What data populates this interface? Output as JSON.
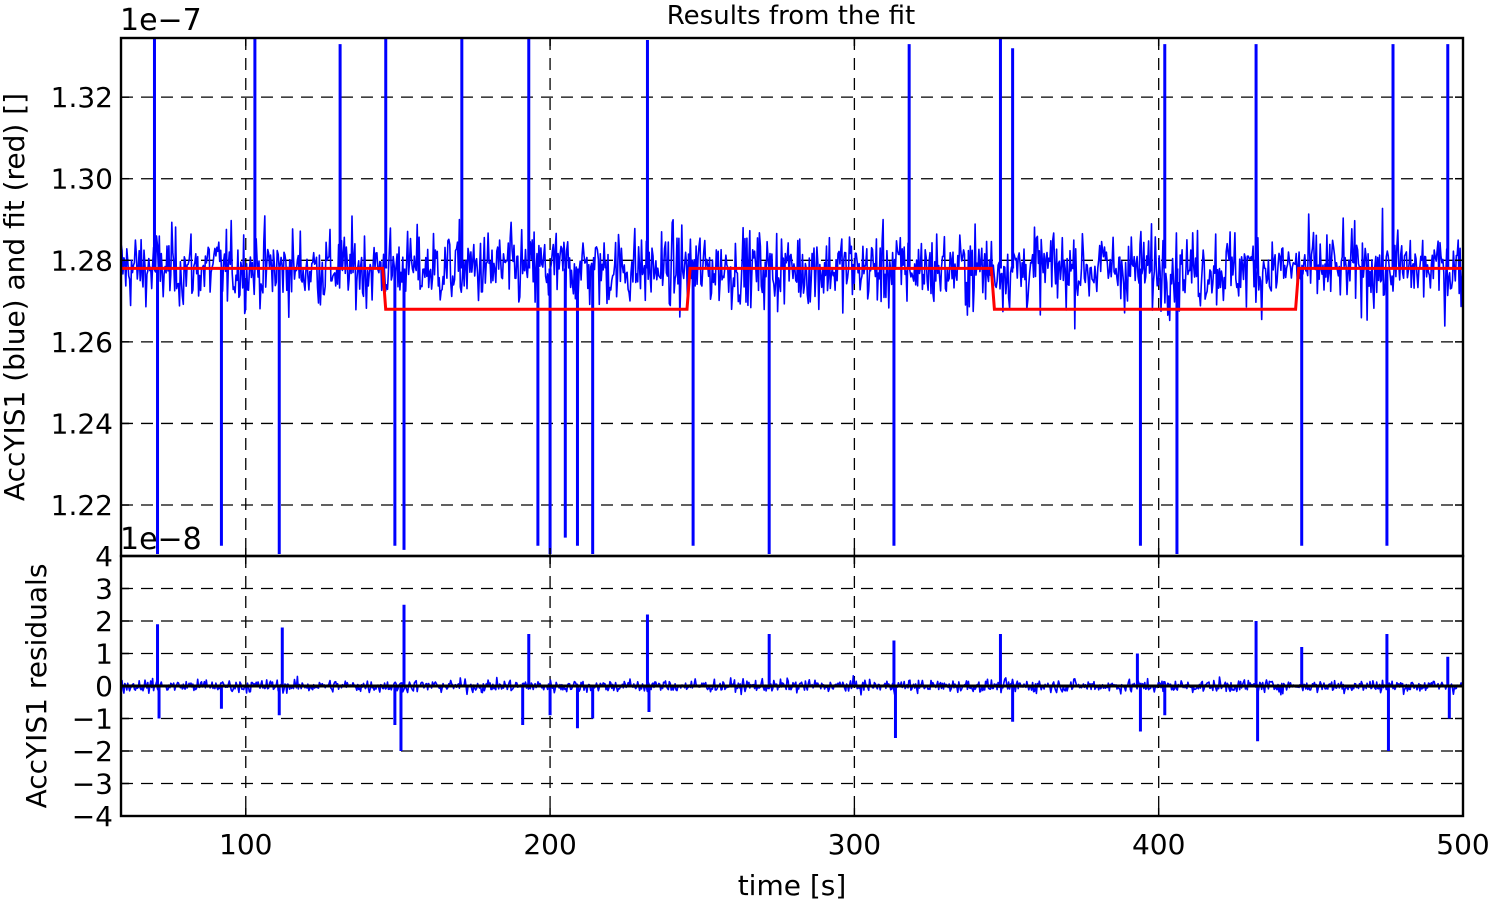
{
  "chart_data": [
    {
      "type": "line",
      "title": "Results from the fit",
      "xlabel": "",
      "ylabel": "AccYIS1 (blue) and fit (red) []",
      "y_offset_label": "1e−7",
      "xlim": [
        59,
        500
      ],
      "ylim": [
        1.2075,
        1.3345
      ],
      "x_ticks": [
        100,
        200,
        300,
        400,
        500
      ],
      "y_ticks": [
        1.22,
        1.24,
        1.26,
        1.28,
        1.3,
        1.32
      ],
      "y_tick_labels": [
        "1.22",
        "1.24",
        "1.26",
        "1.28",
        "1.30",
        "1.32"
      ],
      "grid": true,
      "series": [
        {
          "color": "#0000ff",
          "noise": {
            "center": 1.278,
            "amplitude": 0.012
          },
          "spikes": [
            [
              70,
              1.336
            ],
            [
              71,
              1.208
            ],
            [
              92,
              1.21
            ],
            [
              103,
              1.335
            ],
            [
              111,
              1.208
            ],
            [
              131,
              1.333
            ],
            [
              146,
              1.335
            ],
            [
              149,
              1.21
            ],
            [
              152,
              1.209
            ],
            [
              171,
              1.335
            ],
            [
              193,
              1.335
            ],
            [
              196,
              1.21
            ],
            [
              200,
              1.208
            ],
            [
              205,
              1.212
            ],
            [
              209,
              1.21
            ],
            [
              214,
              1.208
            ],
            [
              232,
              1.334
            ],
            [
              247,
              1.21
            ],
            [
              272,
              1.208
            ],
            [
              313,
              1.21
            ],
            [
              318,
              1.333
            ],
            [
              348,
              1.335
            ],
            [
              352,
              1.332
            ],
            [
              394,
              1.21
            ],
            [
              402,
              1.333
            ],
            [
              406,
              1.208
            ],
            [
              432,
              1.333
            ],
            [
              447,
              1.21
            ],
            [
              475,
              1.21
            ],
            [
              477,
              1.333
            ],
            [
              495,
              1.333
            ]
          ]
        },
        {
          "color": "#ff0000",
          "x": [
            59,
            145,
            146,
            245,
            246,
            345,
            346,
            445,
            446,
            500
          ],
          "y": [
            1.278,
            1.278,
            1.268,
            1.268,
            1.278,
            1.278,
            1.268,
            1.268,
            1.278,
            1.278
          ]
        }
      ]
    },
    {
      "type": "line",
      "title": "",
      "xlabel": "time [s]",
      "ylabel": "AccYIS1 residuals",
      "y_offset_label": "1e−8",
      "xlim": [
        59,
        500
      ],
      "ylim": [
        -4,
        4
      ],
      "x_ticks": [
        100,
        200,
        300,
        400,
        500
      ],
      "x_tick_labels": [
        "100",
        "200",
        "300",
        "400",
        "500"
      ],
      "y_ticks": [
        -4,
        -3,
        -2,
        -1,
        0,
        1,
        2,
        3,
        4
      ],
      "y_tick_labels": [
        "−4",
        "−3",
        "−2",
        "−1",
        "0",
        "1",
        "2",
        "3",
        "4"
      ],
      "grid": true,
      "series": [
        {
          "color": "#0000ff",
          "noise": {
            "center": 0,
            "amplitude": 0.25
          },
          "spikes": [
            [
              71,
              1.9
            ],
            [
              71.5,
              -1.0
            ],
            [
              92,
              -0.7
            ],
            [
              112,
              1.8
            ],
            [
              111,
              -0.9
            ],
            [
              149,
              -1.2
            ],
            [
              152,
              2.5
            ],
            [
              151,
              -2.0
            ],
            [
              193,
              1.6
            ],
            [
              191,
              -1.2
            ],
            [
              200,
              -0.9
            ],
            [
              209,
              -1.3
            ],
            [
              214,
              -1.0
            ],
            [
              232,
              2.2
            ],
            [
              232.5,
              -0.8
            ],
            [
              272,
              1.6
            ],
            [
              313,
              1.4
            ],
            [
              313.5,
              -1.6
            ],
            [
              348,
              1.6
            ],
            [
              352,
              -1.1
            ],
            [
              393,
              1.0
            ],
            [
              394,
              -1.4
            ],
            [
              402,
              -0.9
            ],
            [
              432,
              2.0
            ],
            [
              432.5,
              -1.7
            ],
            [
              447,
              1.2
            ],
            [
              475,
              1.6
            ],
            [
              475.5,
              -2.0
            ],
            [
              495,
              0.9
            ],
            [
              495.5,
              -1.0
            ]
          ]
        },
        {
          "color": "#000000",
          "x": [
            59,
            500
          ],
          "y": [
            0,
            0
          ]
        }
      ]
    }
  ]
}
